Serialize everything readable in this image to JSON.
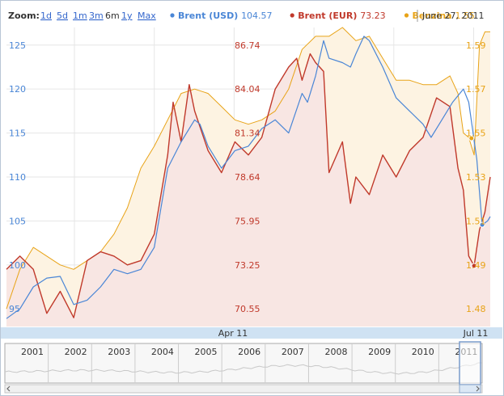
{
  "header": {
    "zoom_label": "Zoom:",
    "zoom_options": [
      "1d",
      "5d",
      "1m",
      "3m",
      "6m",
      "1y",
      "Max"
    ],
    "zoom_active": "6m",
    "legend": [
      {
        "name": "Brent (USD)",
        "value": "104.57",
        "color": "#4a86d6"
      },
      {
        "name": "Brent (EUR)",
        "value": "73.23",
        "color": "#c0392b"
      },
      {
        "name": "Benzina",
        "value": "1.55",
        "color": "#e8a317"
      }
    ],
    "date": "June 27, 2011"
  },
  "colors": {
    "usd": "#4a86d6",
    "eur": "#c0392b",
    "benzina": "#e8a317",
    "eur_fill": "#f8e6e3",
    "benzina_fill": "#fdf3e2",
    "axis_left": "#4a86d6",
    "axis_mid": "#c0392b",
    "axis_right": "#e8a317"
  },
  "chart_data": {
    "type": "line",
    "title": "",
    "x_ticks": [
      "Apr 11",
      "Jul 11"
    ],
    "y_left": {
      "series": "Brent (USD)",
      "ticks": [
        95,
        100,
        105,
        110,
        115,
        120,
        125
      ],
      "range": [
        93,
        127
      ]
    },
    "y_mid": {
      "series": "Brent (EUR)",
      "ticks": [
        "70.55",
        "73.25",
        "75.95",
        "78.64",
        "81.34",
        "84.04",
        "86.74"
      ]
    },
    "y_right": {
      "series": "Benzina",
      "ticks": [
        "1.48",
        "1.49",
        "1.51",
        "1.53",
        "1.55",
        "1.57",
        "1.59"
      ]
    },
    "x_range": [
      0,
      180
    ],
    "series": [
      {
        "name": "Brent (USD)",
        "unit_axis": "left",
        "color": "#4a86d6",
        "points": [
          [
            0,
            93.9
          ],
          [
            5,
            95.0
          ],
          [
            10,
            97.5
          ],
          [
            15,
            98.5
          ],
          [
            20,
            98.7
          ],
          [
            25,
            95.5
          ],
          [
            30,
            96.0
          ],
          [
            35,
            97.5
          ],
          [
            40,
            99.5
          ],
          [
            45,
            99.0
          ],
          [
            50,
            99.5
          ],
          [
            55,
            102.0
          ],
          [
            60,
            111.0
          ],
          [
            65,
            114.0
          ],
          [
            70,
            116.5
          ],
          [
            72,
            116.0
          ],
          [
            75,
            113.5
          ],
          [
            80,
            111.0
          ],
          [
            85,
            113.0
          ],
          [
            90,
            113.5
          ],
          [
            95,
            115.5
          ],
          [
            100,
            116.5
          ],
          [
            105,
            115.0
          ],
          [
            110,
            119.5
          ],
          [
            112,
            118.5
          ],
          [
            115,
            121.5
          ],
          [
            118,
            125.5
          ],
          [
            120,
            123.5
          ],
          [
            125,
            123.0
          ],
          [
            128,
            122.5
          ],
          [
            130,
            124.0
          ],
          [
            133,
            126.0
          ],
          [
            135,
            125.5
          ],
          [
            140,
            122.5
          ],
          [
            145,
            119.0
          ],
          [
            150,
            117.5
          ],
          [
            155,
            116.0
          ],
          [
            158,
            114.5
          ],
          [
            162,
            116.5
          ],
          [
            166,
            118.5
          ],
          [
            170,
            120.0
          ],
          [
            172,
            118.5
          ],
          [
            175,
            112.0
          ],
          [
            177,
            104.57
          ],
          [
            179,
            105.0
          ],
          [
            180,
            105.5
          ]
        ]
      },
      {
        "name": "Brent (EUR)",
        "unit_axis": "left",
        "color": "#c0392b",
        "points": [
          [
            0,
            99.5
          ],
          [
            5,
            101.0
          ],
          [
            10,
            99.5
          ],
          [
            15,
            94.5
          ],
          [
            20,
            97.0
          ],
          [
            25,
            94.0
          ],
          [
            30,
            100.5
          ],
          [
            35,
            101.5
          ],
          [
            40,
            101.0
          ],
          [
            45,
            100.0
          ],
          [
            50,
            100.5
          ],
          [
            55,
            103.5
          ],
          [
            60,
            112.5
          ],
          [
            62,
            118.5
          ],
          [
            65,
            114.0
          ],
          [
            68,
            120.5
          ],
          [
            70,
            117.5
          ],
          [
            75,
            113.0
          ],
          [
            80,
            110.5
          ],
          [
            85,
            114.0
          ],
          [
            90,
            112.5
          ],
          [
            95,
            114.5
          ],
          [
            100,
            120.0
          ],
          [
            102,
            121.0
          ],
          [
            105,
            122.5
          ],
          [
            108,
            123.5
          ],
          [
            110,
            121.0
          ],
          [
            113,
            124.0
          ],
          [
            115,
            123.0
          ],
          [
            118,
            122.0
          ],
          [
            120,
            110.5
          ],
          [
            125,
            114.0
          ],
          [
            128,
            107.0
          ],
          [
            130,
            110.0
          ],
          [
            135,
            108.0
          ],
          [
            140,
            112.5
          ],
          [
            145,
            110.0
          ],
          [
            150,
            113.0
          ],
          [
            155,
            114.5
          ],
          [
            160,
            119.0
          ],
          [
            165,
            118.0
          ],
          [
            168,
            111.0
          ],
          [
            170,
            108.5
          ],
          [
            172,
            101.0
          ],
          [
            174,
            99.9
          ],
          [
            176,
            104.0
          ],
          [
            178,
            106.0
          ],
          [
            180,
            110.0
          ]
        ]
      },
      {
        "name": "Benzina",
        "unit_axis": "left",
        "color": "#e8a317",
        "points": [
          [
            0,
            95.0
          ],
          [
            5,
            99.5
          ],
          [
            10,
            102.0
          ],
          [
            15,
            101.0
          ],
          [
            20,
            100.0
          ],
          [
            25,
            99.5
          ],
          [
            30,
            100.5
          ],
          [
            35,
            101.5
          ],
          [
            40,
            103.5
          ],
          [
            45,
            106.5
          ],
          [
            50,
            111.0
          ],
          [
            55,
            113.5
          ],
          [
            60,
            116.5
          ],
          [
            65,
            119.5
          ],
          [
            70,
            120.0
          ],
          [
            75,
            119.5
          ],
          [
            80,
            118.0
          ],
          [
            85,
            116.5
          ],
          [
            90,
            116.0
          ],
          [
            95,
            116.5
          ],
          [
            100,
            117.5
          ],
          [
            105,
            120.0
          ],
          [
            110,
            124.5
          ],
          [
            115,
            126.0
          ],
          [
            120,
            126.0
          ],
          [
            125,
            127.0
          ],
          [
            130,
            125.5
          ],
          [
            135,
            126.0
          ],
          [
            140,
            123.5
          ],
          [
            145,
            121.0
          ],
          [
            150,
            121.0
          ],
          [
            155,
            120.5
          ],
          [
            160,
            120.5
          ],
          [
            165,
            121.5
          ],
          [
            168,
            119.5
          ],
          [
            170,
            115.0
          ],
          [
            172,
            114.5
          ],
          [
            174,
            112.5
          ],
          [
            176,
            125.0
          ],
          [
            178,
            126.5
          ],
          [
            180,
            126.5
          ]
        ]
      }
    ],
    "end_markers": [
      {
        "series": "Brent (USD)",
        "x": 177,
        "y": 104.57
      },
      {
        "series": "Brent (EUR)",
        "x": 174,
        "y": 99.9
      },
      {
        "series": "Benzina",
        "x": 173,
        "y": 114.4
      }
    ]
  },
  "navigator": {
    "years": [
      "2001",
      "2002",
      "2003",
      "2004",
      "2005",
      "2006",
      "2007",
      "2008",
      "2009",
      "2010",
      "2011"
    ]
  }
}
